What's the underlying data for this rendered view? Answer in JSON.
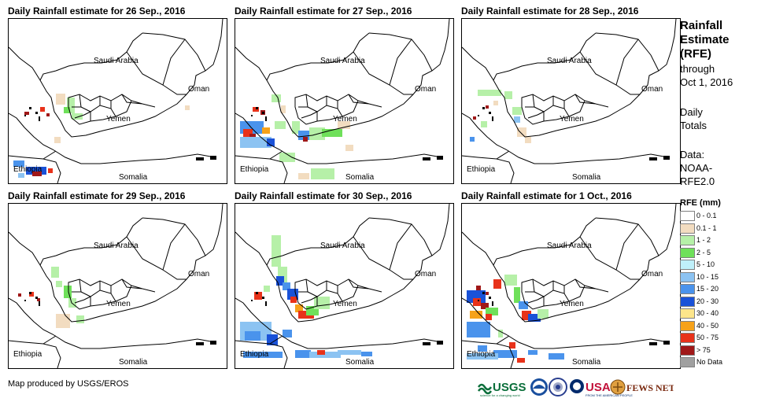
{
  "panels": [
    {
      "title": "Daily Rainfall estimate for 26 Sep., 2016"
    },
    {
      "title": "Daily Rainfall estimate for 27 Sep., 2016"
    },
    {
      "title": "Daily Rainfall estimate for 28 Sep., 2016"
    },
    {
      "title": "Daily Rainfall estimate for 29 Sep., 2016"
    },
    {
      "title": "Daily Rainfall estimate for 30 Sep., 2016"
    },
    {
      "title": "Daily Rainfall estimate for 1 Oct., 2016"
    }
  ],
  "map_labels": {
    "saudi": "Saudi Arabia",
    "oman": "Oman",
    "yemen": "Yemen",
    "ethiopia": "Ethiopia",
    "somalia": "Somalia"
  },
  "sidebar": {
    "title_lines": [
      "Rainfall",
      "Estimate",
      "(RFE)"
    ],
    "through": "through",
    "date": "Oct 1, 2016",
    "daily": "Daily",
    "totals": "Totals",
    "data_label": "Data:",
    "data_source_1": "NOAA-",
    "data_source_2": "RFE2.0",
    "rfe_unit": "RFE (mm)"
  },
  "legend": [
    {
      "label": "0 - 0.1",
      "color": "#ffffff"
    },
    {
      "label": "0.1 - 1",
      "color": "#f2dcc0"
    },
    {
      "label": "1 - 2",
      "color": "#b6f0a8"
    },
    {
      "label": "2 - 5",
      "color": "#6fe05a"
    },
    {
      "label": "5 - 10",
      "color": "#bff0fa"
    },
    {
      "label": "10 - 15",
      "color": "#8cc3f2"
    },
    {
      "label": "15 - 20",
      "color": "#4a93ec"
    },
    {
      "label": "20 - 30",
      "color": "#1a52d8"
    },
    {
      "label": "30 - 40",
      "color": "#fce58a"
    },
    {
      "label": "40 - 50",
      "color": "#f6a21a"
    },
    {
      "label": "50 - 75",
      "color": "#e8321a"
    },
    {
      "label": "> 75",
      "color": "#a01818"
    },
    {
      "label": "No Data",
      "color": "#a0a0a0"
    }
  ],
  "footer": {
    "credit": "Map produced by USGS/EROS",
    "logo_usgs": "USGS",
    "logo_usgs_tagline": "science for a changing world",
    "logo_usaid": "USAID",
    "logo_usaid_tagline": "FROM THE AMERICAN PEOPLE",
    "logo_fews": "FEWS NET"
  }
}
